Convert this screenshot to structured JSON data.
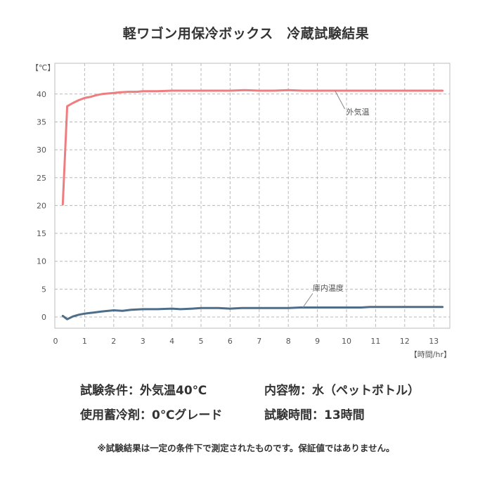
{
  "title": "軽ワゴン用保冷ボックス　冷蔵試験結果",
  "chart_data": {
    "type": "line",
    "title": "軽ワゴン用保冷ボックス　冷蔵試験結果",
    "xlabel": "【時間/hr】",
    "ylabel": "【℃】",
    "xlim": [
      0,
      13.4
    ],
    "ylim": [
      0,
      45
    ],
    "x_ticks": [
      "0",
      "1",
      "2",
      "3",
      "4",
      "5",
      "6",
      "7",
      "8",
      "9",
      "10",
      "11",
      "12",
      "13"
    ],
    "y_ticks": [
      {
        "v": 0,
        "label": "0"
      },
      {
        "v": 5,
        "label": "5"
      },
      {
        "v": 10,
        "label": "10"
      },
      {
        "v": 15,
        "label": "15"
      },
      {
        "v": 20,
        "label": "20"
      },
      {
        "v": 25,
        "label": "25"
      },
      {
        "v": 30,
        "label": "30"
      },
      {
        "v": 35,
        "label": "35"
      },
      {
        "v": 40,
        "label": "40"
      }
    ],
    "grid": true,
    "series": [
      {
        "name": "外気温",
        "color": "#ee7d80",
        "x": [
          0.25,
          0.4,
          0.6,
          0.8,
          1.0,
          1.2,
          1.4,
          1.6,
          1.8,
          2.0,
          2.2,
          2.5,
          2.8,
          3.0,
          3.5,
          4.0,
          4.5,
          5.0,
          5.5,
          6.0,
          6.5,
          7.0,
          7.5,
          8.0,
          8.5,
          9.0,
          9.5,
          10.0,
          10.5,
          11.0,
          11.5,
          12.0,
          12.5,
          13.0,
          13.3
        ],
        "values": [
          20.2,
          37.8,
          38.4,
          38.9,
          39.3,
          39.5,
          39.8,
          40.0,
          40.1,
          40.2,
          40.3,
          40.4,
          40.4,
          40.5,
          40.5,
          40.6,
          40.6,
          40.6,
          40.6,
          40.6,
          40.7,
          40.6,
          40.6,
          40.7,
          40.6,
          40.6,
          40.6,
          40.6,
          40.6,
          40.6,
          40.6,
          40.6,
          40.6,
          40.6,
          40.6
        ]
      },
      {
        "name": "庫内温度",
        "color": "#4e6d89",
        "x": [
          0.25,
          0.4,
          0.6,
          0.8,
          1.0,
          1.3,
          1.6,
          2.0,
          2.3,
          2.6,
          3.0,
          3.5,
          4.0,
          4.3,
          4.7,
          5.0,
          5.3,
          5.6,
          6.0,
          6.4,
          6.8,
          7.2,
          7.6,
          8.0,
          8.4,
          9.0,
          9.5,
          10.0,
          10.5,
          10.8,
          11.2,
          11.8,
          12.4,
          13.0,
          13.3
        ],
        "values": [
          0.2,
          -0.4,
          0.1,
          0.4,
          0.6,
          0.8,
          1.0,
          1.2,
          1.1,
          1.3,
          1.4,
          1.4,
          1.5,
          1.4,
          1.5,
          1.6,
          1.6,
          1.6,
          1.5,
          1.6,
          1.6,
          1.6,
          1.6,
          1.6,
          1.7,
          1.7,
          1.7,
          1.7,
          1.7,
          1.8,
          1.8,
          1.8,
          1.8,
          1.8,
          1.8
        ]
      }
    ],
    "annotations": [
      {
        "text": "外気温",
        "series": 0
      },
      {
        "text": "庫内温度",
        "series": 1
      }
    ]
  },
  "conditions": {
    "test_condition": "試験条件：外気温40℃",
    "contents": "内容物：水（ペットボトル）",
    "coolant": "使用蓄冷剤：0℃グレード",
    "test_time": "試験時間：13時間"
  },
  "note": "※試験結果は一定の条件下で測定されたものです。保証値ではありません。"
}
